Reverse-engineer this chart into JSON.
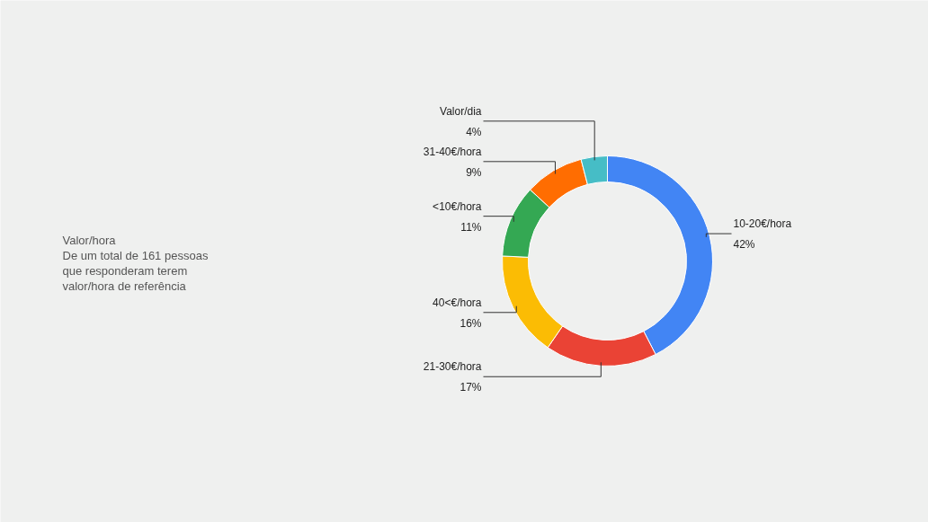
{
  "chart_data": {
    "type": "donut",
    "title": "Valor/hora",
    "subtitle": "De um total de 161 pessoas que responderam terem valor/hora de referência",
    "categories": [
      "10-20€/hora",
      "21-30€/hora",
      "40<€/hora",
      "<10€/hora",
      "31-40€/hora",
      "Valor/dia"
    ],
    "values": [
      42,
      17,
      16,
      11,
      9,
      4
    ],
    "colors": [
      "#4285f4",
      "#ea4335",
      "#fbbc04",
      "#34a853",
      "#ff6d01",
      "#46bdc6"
    ],
    "value_labels": [
      "42%",
      "17%",
      "16%",
      "11%",
      "9%",
      "4%"
    ]
  }
}
